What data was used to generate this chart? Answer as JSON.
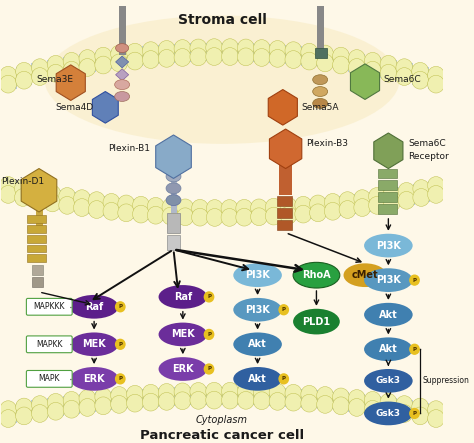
{
  "bg_color": "#fef8e8",
  "title_stroma": "Stroma cell",
  "title_pancreatic": "Pancreatic cancer cell",
  "title_cytoplasm": "Cytoplasm",
  "purple1": "#5c1f8a",
  "purple2": "#6b2d9a",
  "purple3": "#7a3daa",
  "blue1": "#7ab8d8",
  "blue2": "#5898c0",
  "blue3": "#4080b0",
  "blue4": "#3060a0",
  "green_rho": "#28a040",
  "green_pld": "#1a8030",
  "gold_cmet": "#d4a020",
  "phospho": "#e8c020",
  "arrow_c": "#111111",
  "mem_bubble": "#f0f0b0",
  "mem_bubble_edge": "#c0c050",
  "mem_stripe": "#b8cce0",
  "sema3e_color": "#e09050",
  "sema4d_color": "#7090c0",
  "sema5a_color": "#d06828",
  "sema6c_color": "#88b858",
  "plexb1_color": "#88aac8",
  "plexd1_color": "#d4b040",
  "plexb3_color": "#c06030",
  "sema6cr_color": "#789860",
  "mapk_box_edge": "#50a040",
  "mapk_box_fill": "#ffffff"
}
